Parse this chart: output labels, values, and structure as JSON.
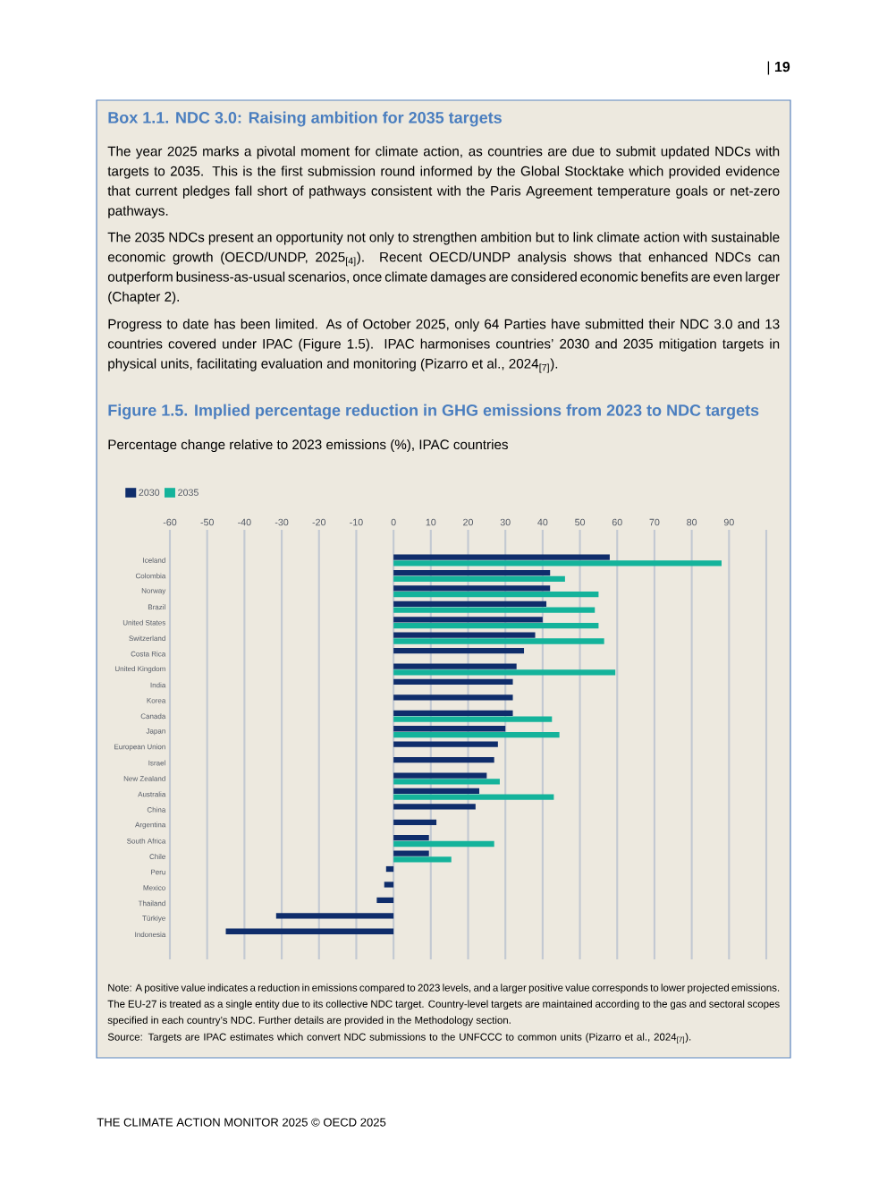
{
  "chart_data": {
    "type": "bar",
    "orientation": "horizontal",
    "title": "Figure 1.5. Implied percentage reduction in GHG emissions from 2023 to NDC targets",
    "subtitle": "Percentage change relative to 2023 emissions (%), IPAC countries",
    "categories": [
      "Iceland",
      "Colombia",
      "Norway",
      "Brazil",
      "United States",
      "Switzerland",
      "Costa Rica",
      "United Kingdom",
      "India",
      "Korea",
      "Canada",
      "Japan",
      "European Union",
      "Israel",
      "New Zealand",
      "Australia",
      "China",
      "Argentina",
      "South Africa",
      "Chile",
      "Peru",
      "Mexico",
      "Thailand",
      "Türkiye",
      "Indonesia"
    ],
    "series": [
      {
        "name": "2030",
        "color": "#0f2d6b",
        "values": [
          58,
          42,
          42,
          41,
          40,
          38,
          35,
          33,
          32,
          32,
          32,
          30,
          28,
          27,
          25,
          23,
          22,
          11.5,
          9.5,
          9.5,
          -2,
          -2.5,
          -4.5,
          -31.5,
          -45
        ]
      },
      {
        "name": "2035",
        "color": "#14b39b",
        "values": [
          88,
          46,
          55,
          54,
          55,
          56.5,
          null,
          59.5,
          null,
          null,
          42.5,
          44.5,
          null,
          null,
          28.5,
          43,
          null,
          null,
          27,
          15.5,
          null,
          null,
          null,
          null,
          null
        ]
      }
    ],
    "xlim": [
      -60,
      100
    ],
    "xticks": [
      -60,
      -50,
      -40,
      -30,
      -20,
      -10,
      0,
      10,
      20,
      30,
      40,
      50,
      60,
      70,
      80,
      90,
      {
        "value": 100,
        "label": null
      }
    ],
    "grid": "x",
    "legend": "top left",
    "annotations": [
      "| **19**",
      "Box 1.1. NDC 3.0: Raising ambition for 2035 targets",
      "The year 2025 marks a pivotal moment for climate action, as countries are due to submit updated NDCs with targets to 2035. This is the first submission round informed by the Global Stocktake which provided evidence that current pledges fall short of pathways consistent with the Paris Agreement temperature goals or net-zero pathways.",
      "The 2035 NDCs present an opportunity not only to strengthen ambition but to link climate action with sustainable economic growth (OECD/UNDP, 2025$_{[4]}$). Recent OECD/UNDP analysis shows that enhanced NDCs can outperform business-as-usual scenarios, once climate damages are considered economic benefits are even larger (Chapter 2).",
      "Progress to date has been limited. As of October 2025, only 64 Parties have submitted their NDC 3.0 and 13 countries covered under IPAC (Figure 1.5). IPAC harmonises countries’ 2030 and 2035 mitigation targets in physical units, facilitating evaluation and monitoring (Pizarro et al., 2024$_{[7]}$).",
      "Note: A positive value indicates a reduction in emissions compared to 2023 levels, and a larger positive value corresponds to lower projected emissions. The EU-27 is treated as a single entity due to its collective NDC target. Country-level targets are maintained according to the gas and sectoral scopes specified in each country’s NDC. Further details are provided in the Methodology section.",
      "Source: Targets are IPAC estimates which convert NDC submissions to the UNFCCC to common units (Pizarro et al., 2024$_{[7]}$).",
      "THE CLIMATE ACTION MONITOR 2025 © OECD 2025"
    ]
  }
}
